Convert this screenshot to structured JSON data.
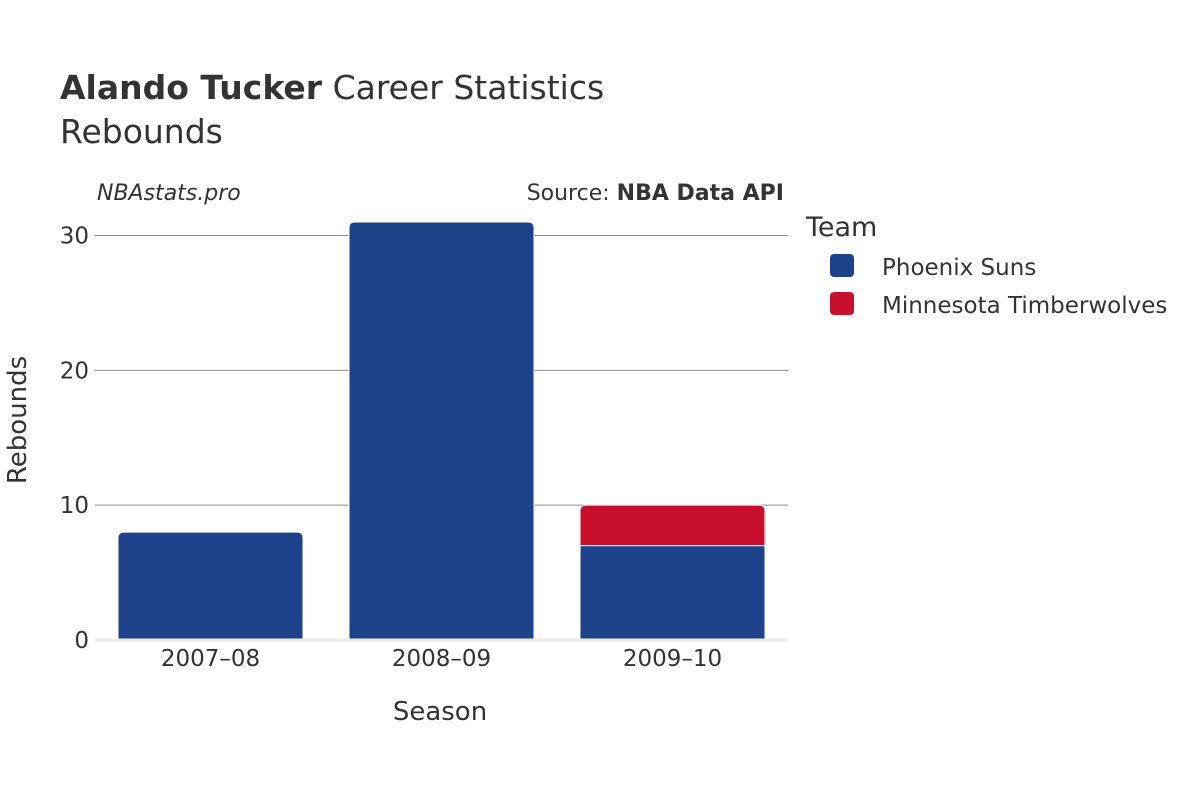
{
  "title": {
    "player": "Alando Tucker",
    "rest": "Career Statistics"
  },
  "subtitle": "Rebounds",
  "watermark": "NBAstats.pro",
  "source": {
    "prefix": "Source: ",
    "name": "NBA Data API"
  },
  "legend": {
    "title": "Team",
    "items": [
      {
        "label": "Phoenix Suns",
        "color": "#1d428a"
      },
      {
        "label": "Minnesota Timberwolves",
        "color": "#c8102e"
      }
    ]
  },
  "chart_data": {
    "type": "bar",
    "stacked": true,
    "title": "Alando Tucker Career Statistics Rebounds",
    "xlabel": "Season",
    "ylabel": "Rebounds",
    "categories": [
      "2007–08",
      "2008–09",
      "2009–10"
    ],
    "series": [
      {
        "name": "Phoenix Suns",
        "color": "#1d428a",
        "values": [
          8,
          31,
          7
        ]
      },
      {
        "name": "Minnesota Timberwolves",
        "color": "#c8102e",
        "values": [
          0,
          0,
          3
        ]
      }
    ],
    "ylim": [
      0,
      31
    ],
    "yticks": [
      0,
      10,
      20,
      30
    ],
    "grid": true,
    "legend_position": "right"
  }
}
